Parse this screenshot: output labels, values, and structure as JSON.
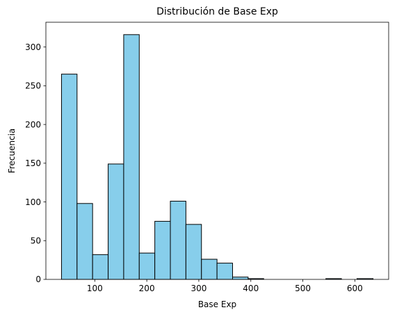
{
  "chart_data": {
    "type": "bar",
    "subtype": "histogram",
    "title": "Distribución de Base Exp",
    "xlabel": "Base Exp",
    "ylabel": "Frecuencia",
    "bin_edges": [
      36,
      65.9,
      95.8,
      125.7,
      155.6,
      185.5,
      215.4,
      245.3,
      275.2,
      305.1,
      335,
      364.9,
      394.8,
      424.7,
      454.6,
      484.5,
      514.4,
      544.3,
      574.2,
      604.1,
      635
    ],
    "values": [
      265,
      98,
      32,
      149,
      316,
      34,
      75,
      101,
      71,
      26,
      21,
      3,
      1,
      0,
      0,
      0,
      0,
      1,
      0,
      1
    ],
    "xlim": [
      6,
      665
    ],
    "ylim": [
      0,
      332
    ],
    "x_ticks": [
      100,
      200,
      300,
      400,
      500,
      600
    ],
    "y_ticks": [
      0,
      50,
      100,
      150,
      200,
      250,
      300
    ],
    "bar_color": "#87ceeb",
    "edge_color": "#000000",
    "grid": false,
    "legend": "none"
  }
}
